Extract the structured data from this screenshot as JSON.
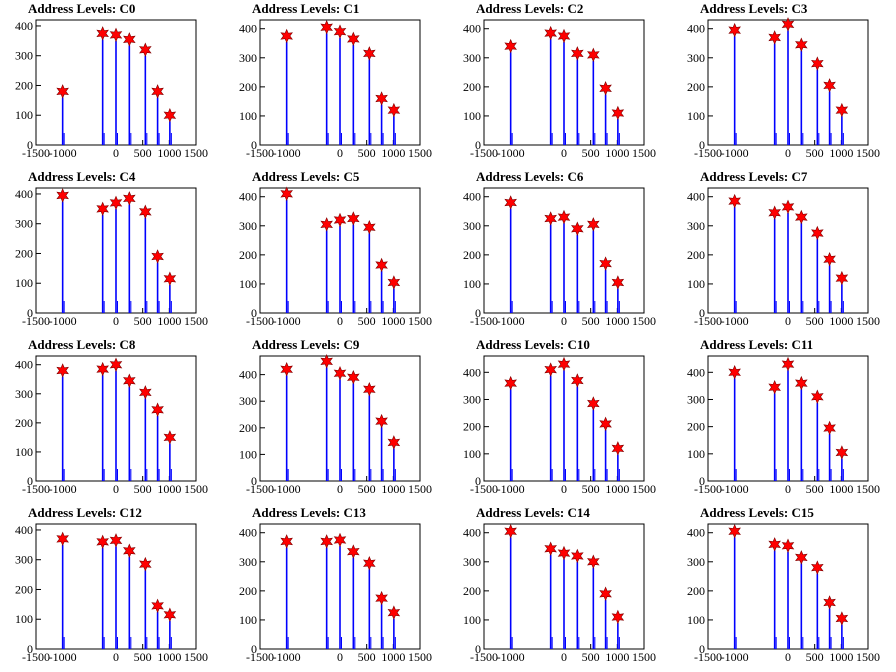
{
  "chart_data": [
    {
      "type": "bar",
      "title": "Address Levels: C0",
      "xlim": [
        -1500,
        1500
      ],
      "ylim": [
        0,
        420
      ],
      "xticks": [
        "-1500",
        "-1000",
        "0",
        "500",
        "1000",
        "1500"
      ],
      "yticks": [
        "0",
        "100",
        "200",
        "300",
        "400"
      ],
      "x": [
        -1000,
        -250,
        0,
        250,
        550,
        780,
        1010
      ],
      "values": [
        180,
        375,
        370,
        355,
        320,
        180,
        100
      ]
    },
    {
      "type": "bar",
      "title": "Address Levels: C1",
      "xlim": [
        -1500,
        1500
      ],
      "ylim": [
        0,
        430
      ],
      "xticks": [
        "-1500",
        "-1000",
        "0",
        "500",
        "1000",
        "1500"
      ],
      "yticks": [
        "0",
        "100",
        "200",
        "300",
        "400"
      ],
      "x": [
        -1000,
        -250,
        0,
        250,
        550,
        780,
        1010
      ],
      "values": [
        375,
        405,
        390,
        365,
        315,
        160,
        120
      ]
    },
    {
      "type": "bar",
      "title": "Address Levels: C2",
      "xlim": [
        -1500,
        1500
      ],
      "ylim": [
        0,
        430
      ],
      "xticks": [
        "-1500",
        "-1000",
        "0",
        "500",
        "1000",
        "1500"
      ],
      "yticks": [
        "0",
        "100",
        "200",
        "300",
        "400"
      ],
      "x": [
        -1000,
        -250,
        0,
        250,
        550,
        780,
        1010
      ],
      "values": [
        340,
        385,
        375,
        315,
        310,
        195,
        110
      ]
    },
    {
      "type": "bar",
      "title": "Address Levels: C3",
      "xlim": [
        -1500,
        1500
      ],
      "ylim": [
        0,
        430
      ],
      "xticks": [
        "-1500",
        "-1000",
        "0",
        "500",
        "1000",
        "1500"
      ],
      "yticks": [
        "0",
        "100",
        "200",
        "300",
        "400"
      ],
      "x": [
        -1000,
        -250,
        0,
        250,
        550,
        780,
        1010
      ],
      "values": [
        395,
        370,
        415,
        345,
        280,
        205,
        120
      ]
    },
    {
      "type": "bar",
      "title": "Address Levels: C4",
      "xlim": [
        -1500,
        1500
      ],
      "ylim": [
        0,
        420
      ],
      "xticks": [
        "-1500",
        "-1000",
        "0",
        "500",
        "1000",
        "1500"
      ],
      "yticks": [
        "0",
        "100",
        "200",
        "300",
        "400"
      ],
      "x": [
        -1000,
        -250,
        0,
        250,
        550,
        780,
        1010
      ],
      "values": [
        395,
        350,
        370,
        385,
        340,
        190,
        115
      ]
    },
    {
      "type": "bar",
      "title": "Address Levels: C5",
      "xlim": [
        -1500,
        1500
      ],
      "ylim": [
        0,
        430
      ],
      "xticks": [
        "-1500",
        "-1000",
        "0",
        "500",
        "1000",
        "1500"
      ],
      "yticks": [
        "0",
        "100",
        "200",
        "300",
        "400"
      ],
      "x": [
        -1000,
        -250,
        0,
        250,
        550,
        780,
        1010
      ],
      "values": [
        410,
        305,
        320,
        325,
        295,
        165,
        105
      ]
    },
    {
      "type": "bar",
      "title": "Address Levels: C6",
      "xlim": [
        -1500,
        1500
      ],
      "ylim": [
        0,
        430
      ],
      "xticks": [
        "-1500",
        "-1000",
        "0",
        "500",
        "1000",
        "1500"
      ],
      "yticks": [
        "0",
        "100",
        "200",
        "300",
        "400"
      ],
      "x": [
        -1000,
        -250,
        0,
        250,
        550,
        780,
        1010
      ],
      "values": [
        380,
        325,
        330,
        290,
        305,
        170,
        105
      ]
    },
    {
      "type": "bar",
      "title": "Address Levels: C7",
      "xlim": [
        -1500,
        1500
      ],
      "ylim": [
        0,
        430
      ],
      "xticks": [
        "-1500",
        "-1000",
        "0",
        "500",
        "1000",
        "1500"
      ],
      "yticks": [
        "0",
        "100",
        "200",
        "300",
        "400"
      ],
      "x": [
        -1000,
        -250,
        0,
        250,
        550,
        780,
        1010
      ],
      "values": [
        385,
        345,
        365,
        330,
        275,
        185,
        120
      ]
    },
    {
      "type": "bar",
      "title": "Address Levels: C8",
      "xlim": [
        -1500,
        1500
      ],
      "ylim": [
        0,
        430
      ],
      "xticks": [
        "-1500",
        "-1000",
        "0",
        "500",
        "1000",
        "1500"
      ],
      "yticks": [
        "0",
        "100",
        "200",
        "300",
        "400"
      ],
      "x": [
        -1000,
        -250,
        0,
        250,
        550,
        780,
        1010
      ],
      "values": [
        380,
        385,
        400,
        345,
        305,
        245,
        150
      ]
    },
    {
      "type": "bar",
      "title": "Address Levels: C9",
      "xlim": [
        -1500,
        1500
      ],
      "ylim": [
        0,
        470
      ],
      "xticks": [
        "-1500",
        "-1000",
        "0",
        "500",
        "1000",
        "1500"
      ],
      "yticks": [
        "0",
        "100",
        "200",
        "300",
        "400"
      ],
      "x": [
        -1000,
        -250,
        0,
        250,
        550,
        780,
        1010
      ],
      "values": [
        420,
        450,
        405,
        390,
        345,
        225,
        145
      ]
    },
    {
      "type": "bar",
      "title": "Address Levels: C10",
      "xlim": [
        -1500,
        1500
      ],
      "ylim": [
        0,
        460
      ],
      "xticks": [
        "-1500",
        "-1000",
        "0",
        "500",
        "1000",
        "1500"
      ],
      "yticks": [
        "0",
        "100",
        "200",
        "300",
        "400"
      ],
      "x": [
        -1000,
        -250,
        0,
        250,
        550,
        780,
        1010
      ],
      "values": [
        360,
        410,
        430,
        370,
        285,
        210,
        120
      ]
    },
    {
      "type": "bar",
      "title": "Address Levels: C11",
      "xlim": [
        -1500,
        1500
      ],
      "ylim": [
        0,
        460
      ],
      "xticks": [
        "-1500",
        "-1000",
        "0",
        "500",
        "1000",
        "1500"
      ],
      "yticks": [
        "0",
        "100",
        "200",
        "300",
        "400"
      ],
      "x": [
        -1000,
        -250,
        0,
        250,
        550,
        780,
        1010
      ],
      "values": [
        400,
        345,
        430,
        360,
        310,
        195,
        105
      ]
    },
    {
      "type": "bar",
      "title": "Address Levels: C12",
      "xlim": [
        -1500,
        1500
      ],
      "ylim": [
        0,
        420
      ],
      "xticks": [
        "-1500",
        "-1000",
        "0",
        "500",
        "1000",
        "1500"
      ],
      "yticks": [
        "0",
        "100",
        "200",
        "300",
        "400"
      ],
      "x": [
        -1000,
        -250,
        0,
        250,
        550,
        780,
        1010
      ],
      "values": [
        370,
        360,
        365,
        330,
        285,
        145,
        115
      ]
    },
    {
      "type": "bar",
      "title": "Address Levels: C13",
      "xlim": [
        -1500,
        1500
      ],
      "ylim": [
        0,
        430
      ],
      "xticks": [
        "-1500",
        "-1000",
        "0",
        "500",
        "1000",
        "1500"
      ],
      "yticks": [
        "0",
        "100",
        "200",
        "300",
        "400"
      ],
      "x": [
        -1000,
        -250,
        0,
        250,
        550,
        780,
        1010
      ],
      "values": [
        370,
        370,
        375,
        335,
        295,
        175,
        125
      ]
    },
    {
      "type": "bar",
      "title": "Address Levels: C14",
      "xlim": [
        -1500,
        1500
      ],
      "ylim": [
        0,
        430
      ],
      "xticks": [
        "-1500",
        "-1000",
        "0",
        "500",
        "1000",
        "1500"
      ],
      "yticks": [
        "0",
        "100",
        "200",
        "300",
        "400"
      ],
      "x": [
        -1000,
        -250,
        0,
        250,
        550,
        780,
        1010
      ],
      "values": [
        405,
        345,
        330,
        320,
        300,
        190,
        110
      ]
    },
    {
      "type": "bar",
      "title": "Address Levels: C15",
      "xlim": [
        -1500,
        1500
      ],
      "ylim": [
        0,
        430
      ],
      "xticks": [
        "-1500",
        "-1000",
        "0",
        "500",
        "1000",
        "1500"
      ],
      "yticks": [
        "0",
        "100",
        "200",
        "300",
        "400"
      ],
      "x": [
        -1000,
        -250,
        0,
        250,
        550,
        780,
        1010
      ],
      "values": [
        405,
        360,
        355,
        315,
        280,
        160,
        105
      ]
    }
  ],
  "colors": {
    "bar": "#0000ff",
    "marker": "#ff0000",
    "marker_edge": "#800000"
  }
}
